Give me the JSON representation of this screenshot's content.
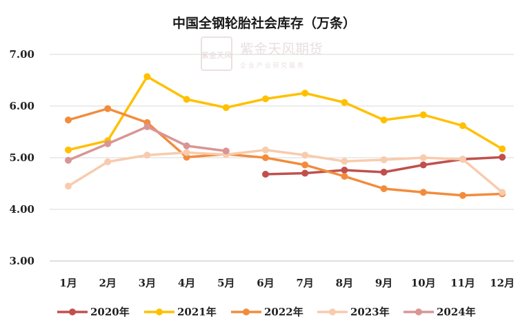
{
  "watermark": {
    "seal_text": "紫金天风",
    "company": "紫金天风期货",
    "slogan": "企 业 产 业 研 究 服 务"
  },
  "chart_data": {
    "type": "line",
    "title": "中国全钢轮胎社会库存（万条）",
    "categories": [
      "1月",
      "2月",
      "3月",
      "4月",
      "5月",
      "6月",
      "7月",
      "8月",
      "9月",
      "10月",
      "11月",
      "12月"
    ],
    "y_tick_labels": [
      "3.00",
      "4.00",
      "5.00",
      "6.00",
      "7.00"
    ],
    "ylim": [
      3,
      7
    ],
    "grid": true,
    "legend_position": "bottom",
    "series": [
      {
        "name": "2020年",
        "color": "#C0504D",
        "values": [
          null,
          null,
          null,
          null,
          null,
          4.68,
          4.7,
          4.76,
          4.72,
          4.86,
          4.97,
          5.01
        ]
      },
      {
        "name": "2021年",
        "color": "#FFC000",
        "values": [
          5.15,
          5.33,
          6.57,
          6.13,
          5.97,
          6.14,
          6.25,
          6.07,
          5.73,
          5.83,
          5.62,
          5.17
        ]
      },
      {
        "name": "2022年",
        "color": "#F28C3C",
        "values": [
          5.73,
          5.95,
          5.68,
          5.01,
          5.07,
          5.0,
          4.86,
          4.64,
          4.4,
          4.33,
          4.27,
          4.3
        ]
      },
      {
        "name": "2023年",
        "color": "#F8CBAD",
        "values": [
          4.45,
          4.92,
          5.05,
          5.1,
          5.06,
          5.15,
          5.05,
          4.93,
          4.96,
          5.0,
          4.97,
          4.33
        ]
      },
      {
        "name": "2024年",
        "color": "#D99594",
        "values": [
          4.95,
          5.27,
          5.6,
          5.23,
          5.13,
          null,
          null,
          null,
          null,
          null,
          null,
          null
        ]
      }
    ]
  }
}
